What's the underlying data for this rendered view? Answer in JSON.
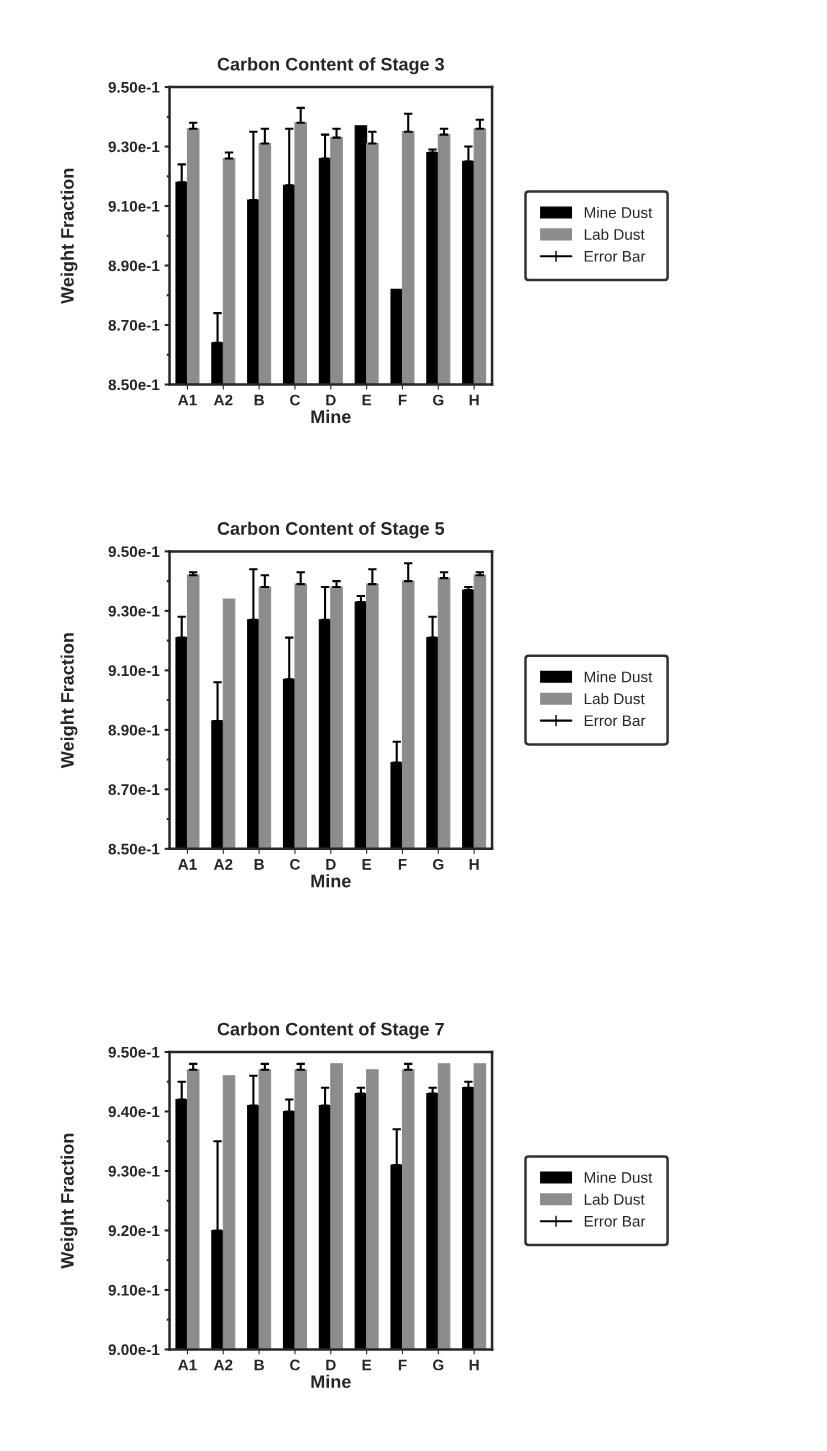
{
  "chart_data": [
    {
      "type": "bar",
      "title": "Carbon Content of Stage 3",
      "xlabel": "Mine",
      "ylabel": "Weight Fraction",
      "categories": [
        "A1",
        "A2",
        "B",
        "C",
        "D",
        "E",
        "F",
        "G",
        "H"
      ],
      "series": [
        {
          "name": "Mine Dust",
          "color": "#000000",
          "values": [
            0.918,
            0.864,
            0.912,
            0.917,
            0.926,
            0.937,
            0.882,
            0.928,
            0.925
          ],
          "errors": [
            [
              0.918,
              0.924
            ],
            [
              0.864,
              0.874
            ],
            [
              0.912,
              0.935
            ],
            [
              0.917,
              0.936
            ],
            [
              0.926,
              0.934
            ],
            null,
            null,
            [
              0.928,
              0.929
            ],
            [
              0.925,
              0.93
            ]
          ]
        },
        {
          "name": "Lab Dust",
          "color": "#8c8c8c",
          "values": [
            0.936,
            0.926,
            0.931,
            0.938,
            0.933,
            0.931,
            0.935,
            0.934,
            0.936
          ],
          "errors": [
            [
              0.936,
              0.938
            ],
            [
              0.926,
              0.928
            ],
            [
              0.931,
              0.936
            ],
            [
              0.938,
              0.943
            ],
            [
              0.933,
              0.936
            ],
            [
              0.931,
              0.935
            ],
            [
              0.935,
              0.941
            ],
            [
              0.934,
              0.936
            ],
            [
              0.936,
              0.939
            ]
          ]
        }
      ],
      "ylim": [
        0.85,
        0.95
      ],
      "yticks": [
        {
          "value": 0.85,
          "label": "8.50e-1"
        },
        {
          "value": 0.87,
          "label": "8.70e-1"
        },
        {
          "value": 0.89,
          "label": "8.90e-1"
        },
        {
          "value": 0.91,
          "label": "9.10e-1"
        },
        {
          "value": 0.93,
          "label": "9.30e-1"
        },
        {
          "value": 0.95,
          "label": "9.50e-1"
        }
      ],
      "legend": "right",
      "grid": false,
      "annotations": [
        "Error Bar"
      ]
    },
    {
      "type": "bar",
      "title": "Carbon Content of Stage 5",
      "xlabel": "Mine",
      "ylabel": "Weight Fraction",
      "categories": [
        "A1",
        "A2",
        "B",
        "C",
        "D",
        "E",
        "F",
        "G",
        "H"
      ],
      "series": [
        {
          "name": "Mine Dust",
          "color": "#000000",
          "values": [
            0.921,
            0.893,
            0.927,
            0.907,
            0.927,
            0.933,
            0.879,
            0.921,
            0.937
          ],
          "errors": [
            [
              0.921,
              0.928
            ],
            [
              0.893,
              0.906
            ],
            [
              0.927,
              0.944
            ],
            [
              0.907,
              0.921
            ],
            [
              0.927,
              0.938
            ],
            [
              0.933,
              0.935
            ],
            [
              0.879,
              0.886
            ],
            [
              0.921,
              0.928
            ],
            [
              0.937,
              0.938
            ]
          ]
        },
        {
          "name": "Lab Dust",
          "color": "#8c8c8c",
          "values": [
            0.942,
            0.934,
            0.938,
            0.939,
            0.938,
            0.939,
            0.94,
            0.941,
            0.942
          ],
          "errors": [
            [
              0.942,
              0.943
            ],
            null,
            [
              0.938,
              0.942
            ],
            [
              0.939,
              0.943
            ],
            [
              0.938,
              0.94
            ],
            [
              0.939,
              0.944
            ],
            [
              0.94,
              0.946
            ],
            [
              0.941,
              0.943
            ],
            [
              0.942,
              0.943
            ]
          ]
        }
      ],
      "ylim": [
        0.85,
        0.95
      ],
      "yticks": [
        {
          "value": 0.85,
          "label": "8.50e-1"
        },
        {
          "value": 0.87,
          "label": "8.70e-1"
        },
        {
          "value": 0.89,
          "label": "8.90e-1"
        },
        {
          "value": 0.91,
          "label": "9.10e-1"
        },
        {
          "value": 0.93,
          "label": "9.30e-1"
        },
        {
          "value": 0.95,
          "label": "9.50e-1"
        }
      ],
      "legend": "right",
      "grid": false,
      "annotations": [
        "Error Bar"
      ]
    },
    {
      "type": "bar",
      "title": "Carbon Content of Stage 7",
      "xlabel": "Mine",
      "ylabel": "Weight Fraction",
      "categories": [
        "A1",
        "A2",
        "B",
        "C",
        "D",
        "E",
        "F",
        "G",
        "H"
      ],
      "series": [
        {
          "name": "Mine Dust",
          "color": "#000000",
          "values": [
            0.942,
            0.92,
            0.941,
            0.94,
            0.941,
            0.943,
            0.931,
            0.943,
            0.944
          ],
          "errors": [
            [
              0.942,
              0.945
            ],
            [
              0.92,
              0.935
            ],
            [
              0.941,
              0.946
            ],
            [
              0.94,
              0.942
            ],
            [
              0.941,
              0.944
            ],
            [
              0.943,
              0.944
            ],
            [
              0.931,
              0.937
            ],
            [
              0.943,
              0.944
            ],
            [
              0.944,
              0.945
            ]
          ]
        },
        {
          "name": "Lab Dust",
          "color": "#8c8c8c",
          "values": [
            0.947,
            0.946,
            0.947,
            0.947,
            0.948,
            0.947,
            0.947,
            0.948,
            0.948
          ],
          "errors": [
            [
              0.947,
              0.948
            ],
            null,
            [
              0.947,
              0.948
            ],
            [
              0.947,
              0.948
            ],
            null,
            null,
            [
              0.947,
              0.948
            ],
            null,
            null
          ]
        }
      ],
      "ylim": [
        0.9,
        0.95
      ],
      "yticks": [
        {
          "value": 0.9,
          "label": "9.00e-1"
        },
        {
          "value": 0.91,
          "label": "9.10e-1"
        },
        {
          "value": 0.92,
          "label": "9.20e-1"
        },
        {
          "value": 0.93,
          "label": "9.30e-1"
        },
        {
          "value": 0.94,
          "label": "9.40e-1"
        },
        {
          "value": 0.95,
          "label": "9.50e-1"
        }
      ],
      "legend": "right",
      "grid": false,
      "annotations": [
        "Error Bar"
      ]
    }
  ]
}
